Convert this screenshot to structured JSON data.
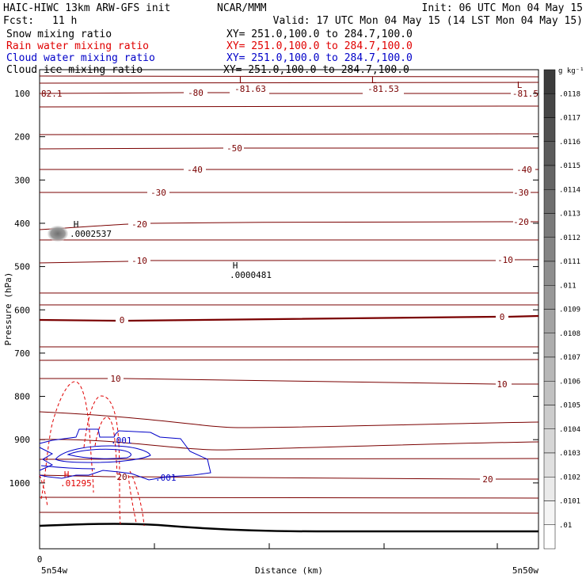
{
  "header": {
    "model": "HAIC-HIWC 13km ARW-GFS init",
    "org": "NCAR/MMM",
    "init": "Init: 06 UTC Mon 04 May 15",
    "fcst_label": "Fcst:",
    "fcst_value": "11 h",
    "valid": "Valid: 17 UTC Mon 04 May 15 (14 LST Mon 04 May 15)"
  },
  "fields": [
    {
      "name": "Snow mixing ratio",
      "xy": "XY= 251.0,100.0 to 284.7,100.0",
      "color": "#000000"
    },
    {
      "name": "Rain water mixing ratio",
      "xy": "XY= 251.0,100.0 to 284.7,100.0",
      "color": "#e00000"
    },
    {
      "name": "Cloud water mixing ratio",
      "xy": "XY= 251.0,100.0 to 284.7,100.0",
      "color": "#0000c8"
    },
    {
      "name": "Cloud ice mixing ratio",
      "xy": "XY= 251.0,100.0 to 284.7,100.0",
      "color": "#000000"
    }
  ],
  "chart_data": {
    "type": "contour-cross-section",
    "ylabel": "Pressure (hPa)",
    "xlabel": "Distance (km)",
    "y_axis": {
      "ticks": [
        100,
        200,
        300,
        400,
        500,
        600,
        700,
        800,
        900,
        1000
      ],
      "range": [
        1050,
        50
      ],
      "inverted": true
    },
    "x_axis": {
      "tick_zero": "0",
      "left_label": "5n54w",
      "right_label": "5n50w"
    },
    "colorbar": {
      "unit": "g kg⁻¹",
      "levels": [
        ".0118",
        ".0117",
        ".0116",
        ".0115",
        ".0114",
        ".0113",
        ".0112",
        ".0111",
        ".011",
        ".0109",
        ".0108",
        ".0107",
        ".0106",
        ".0105",
        ".0104",
        ".0103",
        ".0102",
        ".0101",
        ".01"
      ]
    },
    "temperature_contours": [
      {
        "level": "-80",
        "p": 118
      },
      {
        "level": "-50",
        "p": 187
      },
      {
        "level": "-40",
        "p": 214
      },
      {
        "level": "-30",
        "p": 243
      },
      {
        "level": "-20",
        "p": 280
      },
      {
        "level": "-10",
        "p": 329
      },
      {
        "level": "0",
        "p": 405
      },
      {
        "level": "10",
        "p": 482
      },
      {
        "level": "20",
        "p": 604
      }
    ],
    "extrema": [
      {
        "type": "L",
        "color": "#7a0000"
      },
      {
        "type": "L",
        "color": "#7a0000"
      },
      {
        "type": "L",
        "color": "#7a0000"
      },
      {
        "type": "H",
        "value": ".0002537",
        "color": "#000000"
      },
      {
        "type": "H",
        "value": ".0000481",
        "color": "#000000"
      },
      {
        "type": "H",
        "value": ".01295",
        "color": "#e00000"
      }
    ],
    "contour_labels": [
      {
        "text": "82.1",
        "color": "#7a0000"
      },
      {
        "text": "-81.63",
        "color": "#7a0000"
      },
      {
        "text": "-81.53",
        "color": "#7a0000"
      },
      {
        "text": "-81.5",
        "color": "#7a0000"
      },
      {
        "text": ".001",
        "color": "#0000c8"
      },
      {
        "text": ".001",
        "color": "#0000c8"
      }
    ]
  }
}
